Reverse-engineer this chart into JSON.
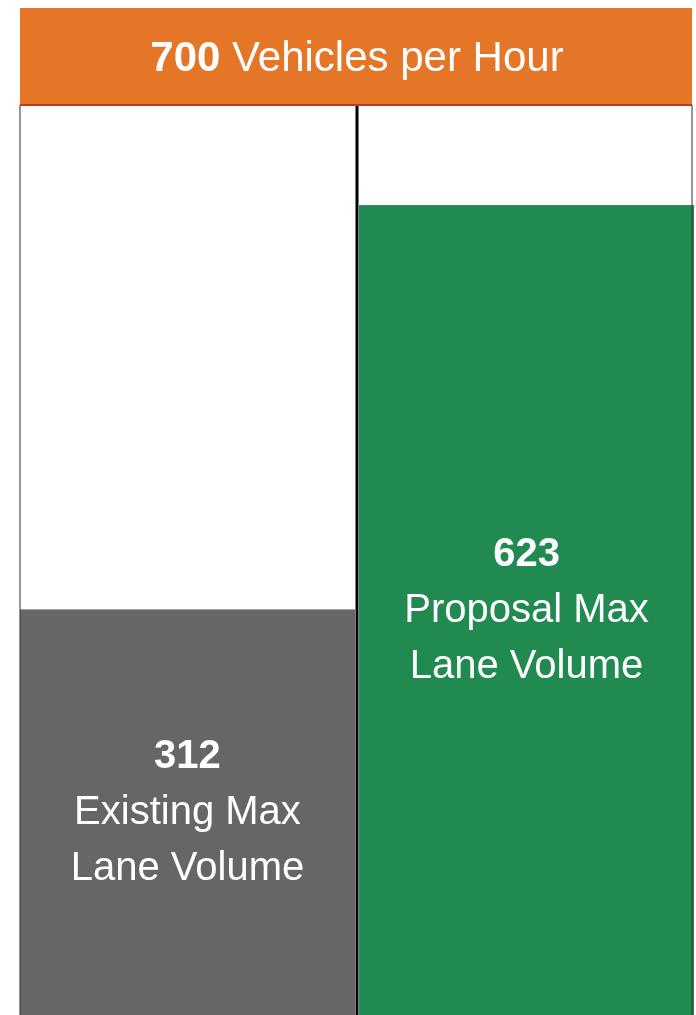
{
  "chart_data": {
    "type": "bar",
    "categories": [
      "Existing Max Lane Volume",
      "Proposal Max Lane Volume"
    ],
    "values": [
      312,
      623
    ],
    "colors": [
      "#666666",
      "#208a50"
    ],
    "ylim": [
      0,
      700
    ],
    "data_labels": true,
    "ref_lines": [
      {
        "axis": "y",
        "value": 700,
        "label": "700 Vehicles per Hour",
        "color": "#c0391b"
      }
    ]
  }
}
